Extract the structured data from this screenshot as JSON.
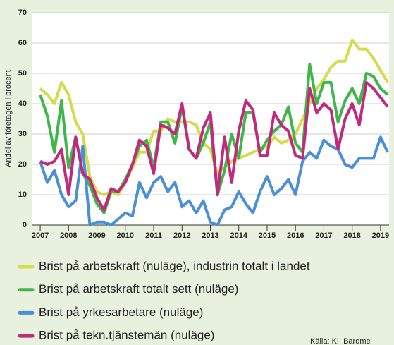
{
  "chart_data": {
    "type": "line",
    "y_label": "Andel av företagen i procent",
    "x": [
      2007,
      2007.25,
      2007.5,
      2007.75,
      2008,
      2008.25,
      2008.5,
      2008.75,
      2009,
      2009.25,
      2009.5,
      2009.75,
      2010,
      2010.25,
      2010.5,
      2010.75,
      2011,
      2011.25,
      2011.5,
      2011.75,
      2012,
      2012.25,
      2012.5,
      2012.75,
      2013,
      2013.25,
      2013.5,
      2013.75,
      2014,
      2014.25,
      2014.5,
      2014.75,
      2015,
      2015.25,
      2015.5,
      2015.75,
      2016,
      2016.25,
      2016.5,
      2016.75,
      2017,
      2017.25,
      2017.5,
      2017.75,
      2018,
      2018.25,
      2018.5,
      2018.75,
      2019,
      2019.25
    ],
    "series": [
      {
        "name": "Brist på arbetskraft (nuläge), industrin totalt i landet",
        "color": "#d5dc4c",
        "values": [
          45,
          43,
          40,
          47,
          43,
          34,
          30,
          16,
          11,
          10,
          11,
          10,
          14,
          19,
          24,
          24,
          31,
          31,
          35,
          34,
          34,
          34,
          33,
          27,
          25,
          17,
          19,
          21,
          22,
          23,
          24,
          25,
          26,
          29,
          27,
          28,
          30,
          35,
          40,
          45,
          48,
          52,
          54,
          54,
          61,
          58,
          58,
          55,
          51,
          47
        ]
      },
      {
        "name": "Brist på arbetskraft totalt sett (nuläge)",
        "color": "#3fb64a",
        "values": [
          43,
          36,
          24,
          41,
          19,
          29,
          17,
          13,
          7,
          4,
          11,
          11,
          15,
          20,
          26,
          28,
          19,
          34,
          34,
          27,
          39,
          25,
          22,
          27,
          34,
          10,
          18,
          30,
          22,
          37,
          37,
          24,
          28,
          31,
          33,
          39,
          27,
          24,
          53,
          40,
          47,
          47,
          34,
          41,
          45,
          40,
          50,
          49,
          45,
          43
        ]
      },
      {
        "name": "Brist på yrkesarbetare (nuläge)",
        "color": "#4b8fd6",
        "values": [
          21,
          14,
          18,
          10,
          6,
          8,
          26,
          0,
          1,
          1,
          0,
          2,
          4,
          3,
          14,
          9,
          14,
          16,
          11,
          14,
          6,
          8,
          4,
          8,
          1,
          0,
          5,
          6,
          11,
          7,
          4,
          11,
          16,
          10,
          12,
          15,
          10,
          21,
          24,
          22,
          28,
          26,
          25,
          20,
          19,
          22,
          22,
          22,
          29,
          24
        ]
      },
      {
        "name": "Brist på tekn.tjänstemän (nuläge)",
        "color": "#c2287c",
        "values": [
          21,
          20,
          21,
          25,
          10,
          29,
          17,
          15,
          9,
          5,
          12,
          11,
          14,
          20,
          28,
          26,
          17,
          33,
          32,
          30,
          40,
          25,
          22,
          32,
          37,
          10,
          29,
          14,
          31,
          41,
          38,
          23,
          23,
          37,
          33,
          31,
          23,
          22,
          45,
          37,
          40,
          38,
          25,
          35,
          40,
          33,
          47,
          45,
          42,
          39
        ]
      }
    ],
    "xlim": [
      2006.7,
      2019.3
    ],
    "xticks": [
      2007,
      2008,
      2009,
      2010,
      2011,
      2012,
      2013,
      2014,
      2015,
      2016,
      2017,
      2018,
      2019
    ],
    "ylim": [
      0,
      70
    ],
    "yticks": [
      0,
      10,
      20,
      30,
      40,
      50,
      60,
      70
    ],
    "grid": true,
    "source": "Källa: KI, Barome"
  }
}
